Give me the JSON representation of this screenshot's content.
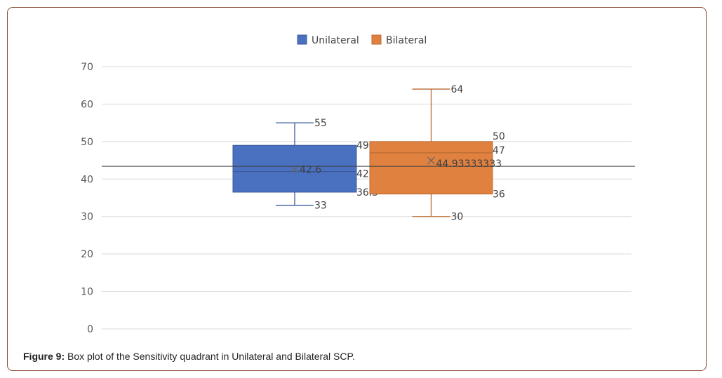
{
  "chart_data": {
    "type": "boxplot",
    "title": "",
    "ylim": [
      0,
      70
    ],
    "yticks": [
      0,
      10,
      20,
      30,
      40,
      50,
      60,
      70
    ],
    "grid": true,
    "legend_position": "top-center",
    "reference_line": 43.4,
    "series": [
      {
        "name": "Unilateral",
        "color": "#4a70c0",
        "min": 33,
        "q1": 36.5,
        "median": 42,
        "q3": 49,
        "max": 55,
        "mean": 42.6,
        "labels": {
          "min": "33",
          "q1": "36.5",
          "median": "42",
          "q3": "49",
          "max": "55",
          "mean": "42.6"
        }
      },
      {
        "name": "Bilateral",
        "color": "#e08140",
        "min": 30,
        "q1": 36,
        "median": 47,
        "q3": 50,
        "max": 64,
        "mean": 44.93333333,
        "labels": {
          "min": "30",
          "q1": "36",
          "median": "47",
          "q3": "50",
          "max": "64",
          "mean": "44.93333333"
        }
      }
    ]
  },
  "caption": {
    "label": "Figure 9:",
    "text": " Box plot of the Sensitivity quadrant in Unilateral and Bilateral SCP."
  }
}
